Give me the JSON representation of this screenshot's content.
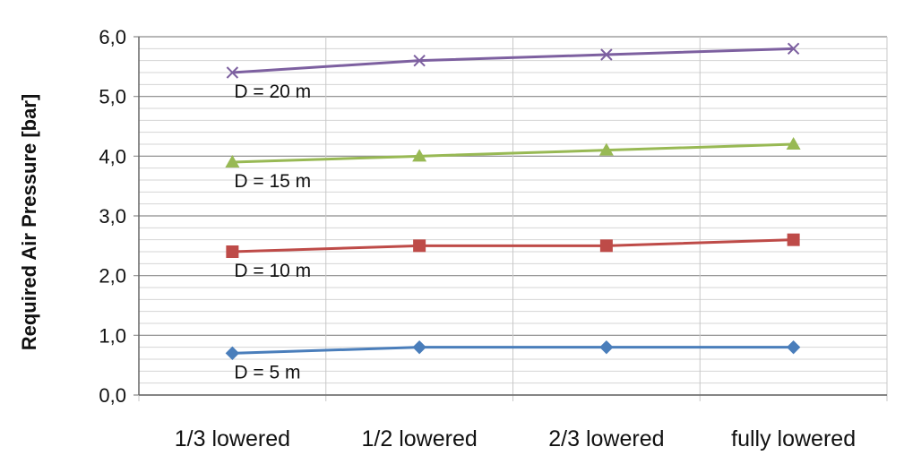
{
  "chart_data": {
    "type": "line",
    "categories": [
      "1/3 lowered",
      "1/2 lowered",
      "2/3 lowered",
      "fully lowered"
    ],
    "ylabel": "Required Air Pressure [bar]",
    "ylim": [
      0,
      6
    ],
    "yticks": [
      "0,0",
      "1,0",
      "2,0",
      "3,0",
      "4,0",
      "5,0",
      "6,0"
    ],
    "grid": true,
    "series": [
      {
        "name": "D = 5 m",
        "values": [
          0.7,
          0.8,
          0.8,
          0.8
        ],
        "color": "#4a7ebb",
        "marker": "diamond"
      },
      {
        "name": "D = 10 m",
        "values": [
          2.4,
          2.5,
          2.5,
          2.6
        ],
        "color": "#be4b48",
        "marker": "square"
      },
      {
        "name": "D = 15 m",
        "values": [
          3.9,
          4.0,
          4.1,
          4.2
        ],
        "color": "#98b954",
        "marker": "triangle"
      },
      {
        "name": "D = 20 m",
        "values": [
          5.4,
          5.6,
          5.7,
          5.8
        ],
        "color": "#7d60a0",
        "marker": "x"
      }
    ]
  }
}
